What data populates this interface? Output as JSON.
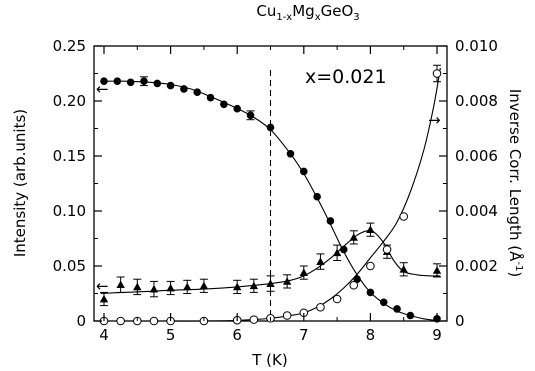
{
  "chart_data": {
    "type": "scatter",
    "title_parts": [
      {
        "text": "Cu",
        "sub": false
      },
      {
        "text": "1-x",
        "sub": true
      },
      {
        "text": "Mg",
        "sub": false
      },
      {
        "text": "x",
        "sub": true
      },
      {
        "text": "GeO",
        "sub": false
      },
      {
        "text": "3",
        "sub": true
      }
    ],
    "xlabel": "T (K)",
    "ylabel_left": "Intensity (arb.units)",
    "ylabel_right_main": "Inverse Corr. Length (",
    "ylabel_right_unit": "Å",
    "ylabel_right_exp": "-1",
    "ylabel_right_close": ")",
    "annotation": "x=0.021",
    "xlim": [
      3.85,
      9.15
    ],
    "ylim_left": [
      0,
      0.25
    ],
    "ylim_right": [
      0,
      0.01
    ],
    "x_ticks": [
      4,
      5,
      6,
      7,
      8,
      9
    ],
    "y_left_ticks": [
      0,
      0.05,
      0.1,
      0.15,
      0.2,
      0.25
    ],
    "y_left_tick_labels": [
      "0",
      "0.05",
      "0.10",
      "0.15",
      "0.20",
      "0.25"
    ],
    "y_right_ticks": [
      0,
      0.002,
      0.004,
      0.006,
      0.008,
      0.01
    ],
    "y_right_tick_labels": [
      "0",
      "0.002",
      "0.004",
      "0.006",
      "0.008",
      "0.010"
    ],
    "vertical_dashed_line_x": 6.5,
    "left_arrow_glyph": "←",
    "right_arrow_glyph": "→",
    "series": [
      {
        "marker": "filled-circle",
        "axis": "left",
        "x": [
          4.0,
          4.2,
          4.4,
          4.6,
          4.8,
          5.0,
          5.2,
          5.4,
          5.6,
          5.8,
          6.0,
          6.2,
          6.5,
          6.8,
          7.0,
          7.2,
          7.4,
          7.6,
          7.8,
          8.0,
          8.2,
          8.4,
          8.6,
          9.0
        ],
        "y": [
          0.218,
          0.218,
          0.217,
          0.218,
          0.216,
          0.214,
          0.211,
          0.208,
          0.203,
          0.197,
          0.193,
          0.187,
          0.176,
          0.152,
          0.136,
          0.113,
          0.091,
          0.065,
          0.038,
          0.026,
          0.017,
          0.011,
          0.005,
          0.002
        ],
        "yerr": [
          0,
          0,
          0,
          0.004,
          0,
          0,
          0,
          0,
          0,
          0,
          0,
          0.004,
          0,
          0,
          0,
          0,
          0,
          0,
          0,
          0,
          0,
          0,
          0,
          0
        ]
      },
      {
        "marker": "filled-triangle",
        "axis": "left",
        "x": [
          4.0,
          4.25,
          4.5,
          4.75,
          5.0,
          5.25,
          5.5,
          6.0,
          6.25,
          6.5,
          6.75,
          7.0,
          7.25,
          7.5,
          7.75,
          8.0,
          8.25,
          8.5,
          9.0
        ],
        "y": [
          0.02,
          0.033,
          0.031,
          0.029,
          0.03,
          0.031,
          0.032,
          0.031,
          0.032,
          0.034,
          0.036,
          0.044,
          0.054,
          0.062,
          0.076,
          0.083,
          0.063,
          0.047,
          0.046
        ],
        "yerr": [
          0.006,
          0.007,
          0.007,
          0.007,
          0.006,
          0.006,
          0.006,
          0.006,
          0.006,
          0.007,
          0.006,
          0.006,
          0.007,
          0.007,
          0.006,
          0.006,
          0.006,
          0.006,
          0.006
        ]
      },
      {
        "marker": "open-circle",
        "axis": "right",
        "x": [
          4.0,
          4.25,
          4.5,
          4.75,
          5.0,
          5.5,
          6.0,
          6.25,
          6.5,
          6.75,
          7.0,
          7.25,
          7.5,
          7.75,
          8.0,
          8.25,
          8.5,
          9.0
        ],
        "y": [
          0.0,
          0.0,
          0.0,
          0.0,
          0.0,
          0.0,
          3e-05,
          5e-05,
          0.0001,
          0.0002,
          0.0003,
          0.0005,
          0.0008,
          0.0013,
          0.002,
          0.0026,
          0.0038,
          0.009
        ],
        "yerr": [
          0,
          0,
          0,
          0,
          0,
          0,
          0,
          0,
          0,
          0,
          0,
          0,
          0,
          0,
          0,
          0,
          0,
          0.0003
        ]
      }
    ],
    "fit_curves": [
      {
        "for_marker": "filled-circle",
        "axis": "left",
        "x": [
          3.95,
          4.3,
          4.7,
          5.0,
          5.3,
          5.6,
          5.9,
          6.2,
          6.5,
          6.8,
          7.0,
          7.2,
          7.4,
          7.6,
          7.8,
          8.0,
          8.2,
          8.4,
          8.6,
          8.8,
          9.05
        ],
        "y": [
          0.218,
          0.218,
          0.217,
          0.215,
          0.211,
          0.204,
          0.196,
          0.187,
          0.174,
          0.152,
          0.134,
          0.112,
          0.088,
          0.063,
          0.042,
          0.026,
          0.016,
          0.009,
          0.005,
          0.002,
          0.0
        ]
      },
      {
        "for_marker": "filled-triangle",
        "axis": "left",
        "x": [
          3.95,
          4.3,
          4.7,
          5.0,
          5.5,
          6.0,
          6.5,
          6.8,
          7.0,
          7.2,
          7.4,
          7.6,
          7.8,
          7.95,
          8.05,
          8.2,
          8.35,
          8.5,
          8.7,
          8.9,
          9.05
        ],
        "y": [
          0.025,
          0.026,
          0.027,
          0.028,
          0.029,
          0.031,
          0.034,
          0.037,
          0.041,
          0.048,
          0.057,
          0.068,
          0.078,
          0.082,
          0.081,
          0.071,
          0.055,
          0.045,
          0.042,
          0.041,
          0.041
        ]
      },
      {
        "for_marker": "open-circle",
        "axis": "right",
        "x": [
          3.95,
          4.5,
          5.0,
          5.5,
          6.0,
          6.5,
          6.8,
          7.0,
          7.2,
          7.4,
          7.6,
          7.8,
          8.0,
          8.2,
          8.4,
          8.6,
          8.8,
          8.95,
          9.05
        ],
        "y": [
          0.0,
          0.0,
          0.0,
          0.0,
          2e-05,
          0.0001,
          0.0002,
          0.0003,
          0.0005,
          0.0008,
          0.0012,
          0.0017,
          0.0023,
          0.0029,
          0.0036,
          0.0047,
          0.0062,
          0.0078,
          0.0092
        ]
      }
    ]
  }
}
